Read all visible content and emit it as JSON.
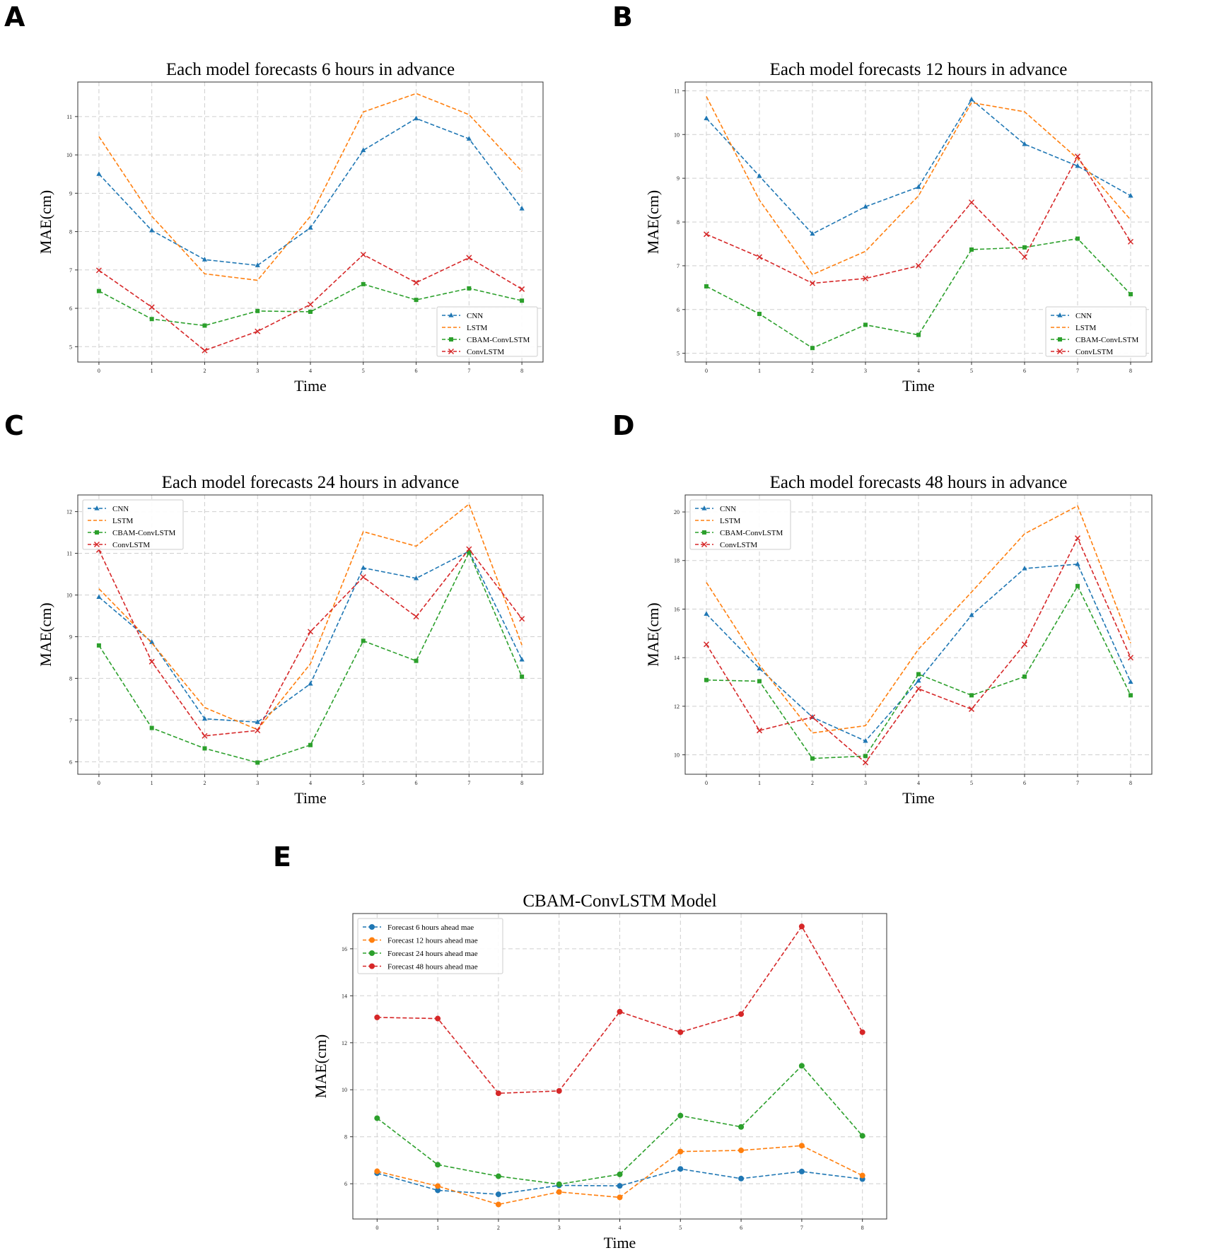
{
  "panel_labels": [
    "A",
    "B",
    "C",
    "D",
    "E"
  ],
  "colors": {
    "CNN": "#1f77b4",
    "LSTM": "#ff7f0e",
    "CBAM-ConvLSTM": "#2ca02c",
    "ConvLSTM": "#d62728",
    "Forecast 6 hours ahead mae": "#1f77b4",
    "Forecast 12 hours ahead mae": "#ff7f0e",
    "Forecast 24 hours ahead mae": "#2ca02c",
    "Forecast 48 hours ahead mae": "#d62728"
  },
  "chart_data": [
    {
      "panel": "A",
      "type": "line",
      "title": "Each model forecasts 6 hours in advance",
      "xlabel": "Time",
      "ylabel": "MAE(cm)",
      "x": [
        0,
        1,
        2,
        3,
        4,
        5,
        6,
        7,
        8
      ],
      "xlim": [
        -0.4,
        8.4
      ],
      "ylim": [
        4.6,
        11.9
      ],
      "yticks": [
        5,
        6,
        7,
        8,
        9,
        10,
        11
      ],
      "grid": true,
      "legend_position": "lower-right",
      "series": [
        {
          "name": "CNN",
          "marker": "triangle",
          "values": [
            9.5,
            8.03,
            7.27,
            7.12,
            8.1,
            10.12,
            10.95,
            10.42,
            8.6
          ]
        },
        {
          "name": "LSTM",
          "marker": "none",
          "values": [
            10.48,
            8.4,
            6.9,
            6.73,
            8.4,
            11.12,
            11.6,
            11.05,
            9.57
          ]
        },
        {
          "name": "CBAM-ConvLSTM",
          "marker": "square",
          "values": [
            6.45,
            5.72,
            5.55,
            5.93,
            5.91,
            6.63,
            6.22,
            6.52,
            6.2
          ]
        },
        {
          "name": "ConvLSTM",
          "marker": "x",
          "values": [
            6.99,
            6.03,
            4.9,
            5.4,
            6.1,
            7.4,
            6.67,
            7.32,
            6.5
          ]
        }
      ]
    },
    {
      "panel": "B",
      "type": "line",
      "title": "Each model forecasts 12 hours in advance",
      "xlabel": "Time",
      "ylabel": "MAE(cm)",
      "x": [
        0,
        1,
        2,
        3,
        4,
        5,
        6,
        7,
        8
      ],
      "xlim": [
        -0.4,
        8.4
      ],
      "ylim": [
        4.8,
        11.2
      ],
      "yticks": [
        5,
        6,
        7,
        8,
        9,
        10,
        11
      ],
      "grid": true,
      "legend_position": "lower-right",
      "series": [
        {
          "name": "CNN",
          "marker": "triangle",
          "values": [
            10.37,
            9.05,
            7.73,
            8.35,
            8.8,
            10.8,
            9.78,
            9.28,
            8.6
          ]
        },
        {
          "name": "LSTM",
          "marker": "none",
          "values": [
            10.87,
            8.5,
            6.8,
            7.33,
            8.6,
            10.73,
            10.52,
            9.45,
            8.05
          ]
        },
        {
          "name": "CBAM-ConvLSTM",
          "marker": "square",
          "values": [
            6.53,
            5.9,
            5.12,
            5.65,
            5.42,
            7.37,
            7.42,
            7.62,
            6.35
          ]
        },
        {
          "name": "ConvLSTM",
          "marker": "x",
          "values": [
            7.72,
            7.2,
            6.6,
            6.71,
            7.0,
            8.45,
            7.2,
            9.5,
            7.55
          ]
        }
      ]
    },
    {
      "panel": "C",
      "type": "line",
      "title": "Each model forecasts 24 hours in advance",
      "xlabel": "Time",
      "ylabel": "MAE(cm)",
      "x": [
        0,
        1,
        2,
        3,
        4,
        5,
        6,
        7,
        8
      ],
      "xlim": [
        -0.4,
        8.4
      ],
      "ylim": [
        5.7,
        12.4
      ],
      "yticks": [
        6,
        7,
        8,
        9,
        10,
        11,
        12
      ],
      "grid": true,
      "legend_position": "upper-left",
      "series": [
        {
          "name": "CNN",
          "marker": "triangle",
          "values": [
            9.95,
            8.87,
            7.03,
            6.95,
            7.87,
            10.65,
            10.4,
            11.05,
            8.45
          ]
        },
        {
          "name": "LSTM",
          "marker": "none",
          "values": [
            10.15,
            8.85,
            7.3,
            6.77,
            8.35,
            11.52,
            11.17,
            12.18,
            8.8
          ]
        },
        {
          "name": "CBAM-ConvLSTM",
          "marker": "square",
          "values": [
            8.79,
            6.81,
            6.32,
            5.98,
            6.4,
            8.9,
            8.42,
            11.02,
            8.04
          ]
        },
        {
          "name": "ConvLSTM",
          "marker": "x",
          "values": [
            11.08,
            8.4,
            6.62,
            6.75,
            9.12,
            10.43,
            9.48,
            11.1,
            9.43
          ]
        }
      ]
    },
    {
      "panel": "D",
      "type": "line",
      "title": "Each model forecasts 48 hours in advance",
      "xlabel": "Time",
      "ylabel": "MAE(cm)",
      "x": [
        0,
        1,
        2,
        3,
        4,
        5,
        6,
        7,
        8
      ],
      "xlim": [
        -0.4,
        8.4
      ],
      "ylim": [
        9.2,
        20.7
      ],
      "yticks": [
        10,
        12,
        14,
        16,
        18,
        20
      ],
      "grid": true,
      "legend_position": "upper-left",
      "series": [
        {
          "name": "CNN",
          "marker": "triangle",
          "values": [
            15.8,
            13.55,
            11.55,
            10.57,
            13.05,
            15.75,
            17.67,
            17.85,
            13.0
          ]
        },
        {
          "name": "LSTM",
          "marker": "none",
          "values": [
            17.1,
            13.7,
            10.9,
            11.2,
            14.35,
            16.7,
            19.1,
            20.25,
            14.6
          ]
        },
        {
          "name": "CBAM-ConvLSTM",
          "marker": "square",
          "values": [
            13.08,
            13.03,
            9.85,
            9.95,
            13.32,
            12.45,
            13.22,
            16.95,
            12.45
          ]
        },
        {
          "name": "ConvLSTM",
          "marker": "x",
          "values": [
            14.55,
            11.0,
            11.55,
            9.68,
            12.72,
            11.88,
            14.55,
            18.92,
            14.0
          ]
        }
      ]
    },
    {
      "panel": "E",
      "type": "line",
      "title": "CBAM-ConvLSTM Model",
      "xlabel": "Time",
      "ylabel": "MAE(cm)",
      "x": [
        0,
        1,
        2,
        3,
        4,
        5,
        6,
        7,
        8
      ],
      "xlim": [
        -0.4,
        8.4
      ],
      "ylim": [
        4.5,
        17.5
      ],
      "yticks": [
        6,
        8,
        10,
        12,
        14,
        16
      ],
      "grid": true,
      "legend_position": "upper-left",
      "series": [
        {
          "name": "Forecast 6 hours ahead mae",
          "marker": "circle",
          "values": [
            6.45,
            5.72,
            5.55,
            5.93,
            5.91,
            6.63,
            6.22,
            6.52,
            6.2
          ]
        },
        {
          "name": "Forecast 12 hours ahead mae",
          "marker": "circle",
          "values": [
            6.53,
            5.9,
            5.12,
            5.65,
            5.42,
            7.37,
            7.42,
            7.62,
            6.35
          ]
        },
        {
          "name": "Forecast 24 hours ahead mae",
          "marker": "circle",
          "values": [
            8.79,
            6.81,
            6.32,
            5.98,
            6.4,
            8.9,
            8.42,
            11.02,
            8.04
          ]
        },
        {
          "name": "Forecast 48 hours ahead mae",
          "marker": "circle",
          "values": [
            13.08,
            13.03,
            9.85,
            9.95,
            13.32,
            12.45,
            13.22,
            16.95,
            12.45
          ]
        }
      ]
    }
  ]
}
